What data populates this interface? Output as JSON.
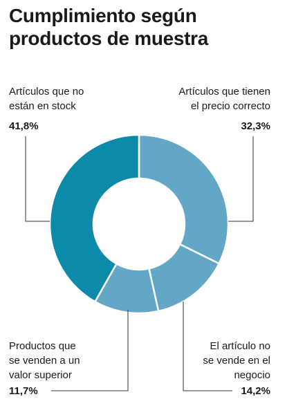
{
  "title": "Cumplimiento según productos de muestra",
  "chart_data": {
    "type": "pie",
    "categories": [
      "Artículos que tienen el precio correcto",
      "El artículo no se vende en el negocio",
      "Productos que se venden a un valor superior",
      "Artículos que no están en stock"
    ],
    "values": [
      32.3,
      14.2,
      11.7,
      41.8
    ],
    "value_labels": [
      "32,3%",
      "14,2%",
      "11,7%",
      "41,8%"
    ],
    "colors": [
      "#62a8c6",
      "#62a8c6",
      "#62a8c6",
      "#0d8aaa"
    ]
  },
  "labels": {
    "top_left": "Artículos que no\nestán en stock",
    "top_right": "Artículos que tienen\nel precio correcto",
    "bottom_left": "Productos que\nse venden a un\nvalor superior",
    "bottom_right": "El artículo no\nse vende en el\nnegocio"
  },
  "percents": {
    "top_left": "41,8%",
    "top_right": "32,3%",
    "bottom_left": "11,7%",
    "bottom_right": "14,2%"
  }
}
